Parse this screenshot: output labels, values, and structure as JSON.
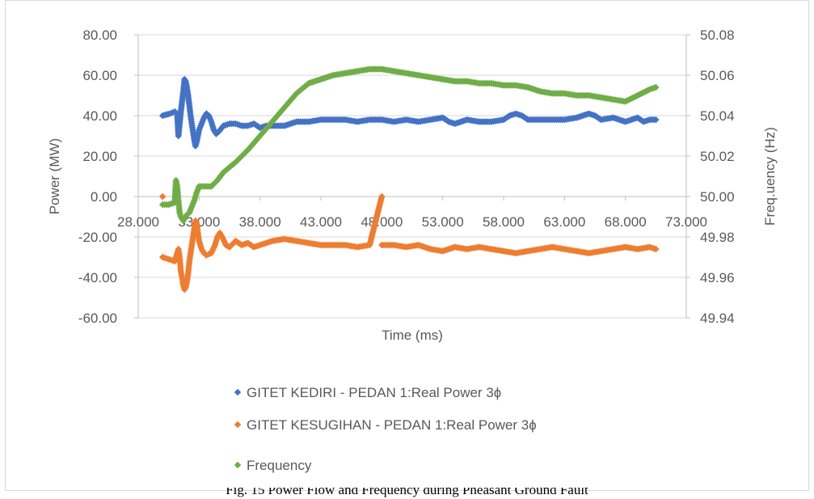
{
  "caption": "Fig. 15 Power Flow and Frequency during Pheasant Ground Fault",
  "chart_data": {
    "type": "scatter",
    "xlabel": "Time (ms)",
    "ylabel_left": "Power (MW)",
    "ylabel_right": "Freq.uency (Hz)",
    "x_ticks": [
      "28.000",
      "33.000",
      "38.000",
      "43.000",
      "48.000",
      "53.000",
      "58.000",
      "63.000",
      "68.000",
      "73.000"
    ],
    "y_left_ticks": [
      "80.00",
      "60.00",
      "40.00",
      "20.00",
      "0.00",
      "-20.00",
      "-40.00",
      "-60.00"
    ],
    "y_right_ticks": [
      "50.08",
      "50.06",
      "50.04",
      "50.02",
      "50.00",
      "49.98",
      "49.96",
      "49.94"
    ],
    "xlim": [
      28,
      73
    ],
    "ylim_left": [
      -60,
      80
    ],
    "ylim_right": [
      49.94,
      50.08
    ],
    "grid": "horizontal",
    "legend_position": "bottom",
    "series": [
      {
        "name": "GITET KEDIRI - PEDAN 1:Real Power 3ɸ",
        "axis": "left",
        "color": "#4472c4",
        "points": [
          [
            30.0,
            40
          ],
          [
            30.6,
            41
          ],
          [
            31.0,
            42
          ],
          [
            31.2,
            41
          ],
          [
            31.3,
            30
          ],
          [
            31.5,
            42
          ],
          [
            31.7,
            52
          ],
          [
            31.8,
            58
          ],
          [
            31.9,
            57
          ],
          [
            32.0,
            54
          ],
          [
            32.1,
            50
          ],
          [
            32.2,
            45
          ],
          [
            32.3,
            40
          ],
          [
            32.4,
            36
          ],
          [
            32.5,
            32
          ],
          [
            32.6,
            28
          ],
          [
            32.7,
            25
          ],
          [
            32.8,
            27
          ],
          [
            32.9,
            30
          ],
          [
            33.0,
            33
          ],
          [
            33.2,
            36
          ],
          [
            33.4,
            39
          ],
          [
            33.6,
            41
          ],
          [
            33.8,
            40
          ],
          [
            34.0,
            37
          ],
          [
            34.2,
            33
          ],
          [
            34.4,
            31
          ],
          [
            34.6,
            32
          ],
          [
            35.0,
            35
          ],
          [
            35.5,
            36
          ],
          [
            36.0,
            36
          ],
          [
            36.5,
            35
          ],
          [
            37.0,
            35
          ],
          [
            37.5,
            36
          ],
          [
            38.0,
            34
          ],
          [
            38.5,
            35
          ],
          [
            39.0,
            35
          ],
          [
            40.0,
            35
          ],
          [
            41.0,
            37
          ],
          [
            42.0,
            37
          ],
          [
            43.0,
            38
          ],
          [
            44.0,
            38
          ],
          [
            45.0,
            38
          ],
          [
            46.0,
            37
          ],
          [
            47.0,
            38
          ],
          [
            48.0,
            38
          ],
          [
            49.0,
            37
          ],
          [
            50.0,
            38
          ],
          [
            51.0,
            37
          ],
          [
            52.0,
            38
          ],
          [
            53.0,
            39
          ],
          [
            53.5,
            37
          ],
          [
            54.0,
            36
          ],
          [
            55.0,
            38
          ],
          [
            56.0,
            37
          ],
          [
            57.0,
            37
          ],
          [
            58.0,
            38
          ],
          [
            58.5,
            40
          ],
          [
            59.0,
            41
          ],
          [
            59.5,
            40
          ],
          [
            60.0,
            38
          ],
          [
            61.0,
            38
          ],
          [
            62.0,
            38
          ],
          [
            63.0,
            38
          ],
          [
            64.0,
            39
          ],
          [
            65.0,
            41
          ],
          [
            65.5,
            40
          ],
          [
            66.0,
            38
          ],
          [
            67.0,
            39
          ],
          [
            68.0,
            37
          ],
          [
            68.5,
            38
          ],
          [
            69.0,
            39
          ],
          [
            69.5,
            37
          ],
          [
            70.0,
            38
          ],
          [
            70.5,
            38
          ]
        ]
      },
      {
        "name": "GITET KESUGIHAN - PEDAN 1:Real Power 3ɸ",
        "axis": "left",
        "color": "#ed7d31",
        "points": [
          [
            30.0,
            0
          ],
          [
            30.0,
            -30
          ],
          [
            30.5,
            -31
          ],
          [
            31.0,
            -32
          ],
          [
            31.2,
            -28
          ],
          [
            31.3,
            -26
          ],
          [
            31.4,
            -30
          ],
          [
            31.5,
            -37
          ],
          [
            31.6,
            -40
          ],
          [
            31.7,
            -44
          ],
          [
            31.8,
            -46
          ],
          [
            31.9,
            -45
          ],
          [
            32.0,
            -42
          ],
          [
            32.1,
            -38
          ],
          [
            32.2,
            -32
          ],
          [
            32.3,
            -28
          ],
          [
            32.4,
            -24
          ],
          [
            32.5,
            -20
          ],
          [
            32.6,
            -16
          ],
          [
            32.7,
            -12
          ],
          [
            32.8,
            -13
          ],
          [
            32.9,
            -18
          ],
          [
            33.0,
            -22
          ],
          [
            33.2,
            -26
          ],
          [
            33.4,
            -28
          ],
          [
            33.6,
            -29
          ],
          [
            34.0,
            -28
          ],
          [
            34.3,
            -24
          ],
          [
            34.5,
            -20
          ],
          [
            34.7,
            -18
          ],
          [
            34.9,
            -20
          ],
          [
            35.2,
            -24
          ],
          [
            35.5,
            -25
          ],
          [
            36.0,
            -22
          ],
          [
            36.5,
            -24
          ],
          [
            37.0,
            -23
          ],
          [
            37.5,
            -25
          ],
          [
            38.0,
            -24
          ],
          [
            38.5,
            -23
          ],
          [
            39.0,
            -22
          ],
          [
            40.0,
            -21
          ],
          [
            41.0,
            -22
          ],
          [
            42.0,
            -23
          ],
          [
            43.0,
            -24
          ],
          [
            44.0,
            -24
          ],
          [
            45.0,
            -24
          ],
          [
            46.0,
            -25
          ],
          [
            47.0,
            -24
          ],
          [
            48.0,
            0
          ],
          [
            48.0,
            -24
          ],
          [
            49.0,
            -24
          ],
          [
            50.0,
            -25
          ],
          [
            51.0,
            -24
          ],
          [
            52.0,
            -26
          ],
          [
            53.0,
            -27
          ],
          [
            54.0,
            -25
          ],
          [
            55.0,
            -26
          ],
          [
            56.0,
            -25
          ],
          [
            57.0,
            -26
          ],
          [
            58.0,
            -27
          ],
          [
            59.0,
            -28
          ],
          [
            60.0,
            -27
          ],
          [
            61.0,
            -26
          ],
          [
            62.0,
            -25
          ],
          [
            63.0,
            -26
          ],
          [
            64.0,
            -27
          ],
          [
            65.0,
            -28
          ],
          [
            66.0,
            -27
          ],
          [
            67.0,
            -26
          ],
          [
            68.0,
            -25
          ],
          [
            69.0,
            -26
          ],
          [
            70.0,
            -25
          ],
          [
            70.5,
            -26
          ]
        ]
      },
      {
        "name": "Frequency",
        "axis": "right",
        "color": "#70ad47",
        "points": [
          [
            30.0,
            49.996
          ],
          [
            30.5,
            49.996
          ],
          [
            31.0,
            49.997
          ],
          [
            31.1,
            50.008
          ],
          [
            31.2,
            50.005
          ],
          [
            31.3,
            49.998
          ],
          [
            31.4,
            49.992
          ],
          [
            31.5,
            49.99
          ],
          [
            31.6,
            49.989
          ],
          [
            31.7,
            49.988
          ],
          [
            31.8,
            49.989
          ],
          [
            31.9,
            49.99
          ],
          [
            32.0,
            49.991
          ],
          [
            32.2,
            49.992
          ],
          [
            32.4,
            49.995
          ],
          [
            32.6,
            49.998
          ],
          [
            32.8,
            50.002
          ],
          [
            33.0,
            50.005
          ],
          [
            33.5,
            50.005
          ],
          [
            34.0,
            50.005
          ],
          [
            34.5,
            50.008
          ],
          [
            35.0,
            50.012
          ],
          [
            36.0,
            50.017
          ],
          [
            37.0,
            50.023
          ],
          [
            38.0,
            50.03
          ],
          [
            39.0,
            50.037
          ],
          [
            40.0,
            50.044
          ],
          [
            41.0,
            50.051
          ],
          [
            42.0,
            50.056
          ],
          [
            43.0,
            50.058
          ],
          [
            44.0,
            50.06
          ],
          [
            45.0,
            50.061
          ],
          [
            46.0,
            50.062
          ],
          [
            47.0,
            50.063
          ],
          [
            48.0,
            50.063
          ],
          [
            49.0,
            50.062
          ],
          [
            50.0,
            50.061
          ],
          [
            51.0,
            50.06
          ],
          [
            52.0,
            50.059
          ],
          [
            53.0,
            50.058
          ],
          [
            54.0,
            50.057
          ],
          [
            55.0,
            50.057
          ],
          [
            56.0,
            50.056
          ],
          [
            57.0,
            50.056
          ],
          [
            58.0,
            50.055
          ],
          [
            59.0,
            50.055
          ],
          [
            60.0,
            50.054
          ],
          [
            61.0,
            50.052
          ],
          [
            62.0,
            50.051
          ],
          [
            63.0,
            50.051
          ],
          [
            64.0,
            50.05
          ],
          [
            65.0,
            50.05
          ],
          [
            66.0,
            50.049
          ],
          [
            67.0,
            50.048
          ],
          [
            68.0,
            50.047
          ],
          [
            69.0,
            50.05
          ],
          [
            70.0,
            50.053
          ],
          [
            70.5,
            50.054
          ]
        ]
      }
    ]
  }
}
